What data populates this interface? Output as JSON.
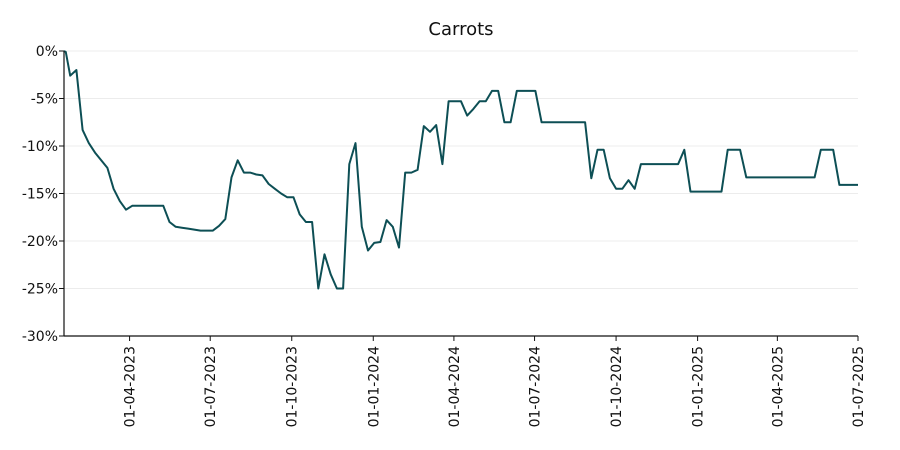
{
  "chart_data": {
    "type": "line",
    "title": "Carrots",
    "xlabel": "",
    "ylabel": "",
    "ylim": [
      -30,
      0
    ],
    "xlim": [
      "2023-01-17",
      "2025-07-01"
    ],
    "y_ticks": [
      0,
      -5,
      -10,
      -15,
      -20,
      -25,
      -30
    ],
    "y_tick_labels": [
      "0%",
      "-5%",
      "-10%",
      "-15%",
      "-20%",
      "-25%",
      "-30%"
    ],
    "x_ticks": [
      "2023-04-01",
      "2023-07-01",
      "2023-10-01",
      "2024-01-01",
      "2024-04-01",
      "2024-07-01",
      "2024-10-01",
      "2025-01-01",
      "2025-04-01",
      "2025-07-01"
    ],
    "x_tick_labels": [
      "01-04-2023",
      "01-07-2023",
      "01-10-2023",
      "01-01-2024",
      "01-04-2024",
      "01-07-2024",
      "01-10-2024",
      "01-01-2025",
      "01-04-2025",
      "01-07-2025"
    ],
    "grid": true,
    "series_color": "#0d4f55",
    "series": [
      {
        "x": [
          "2023-01-17",
          "2023-01-19",
          "2023-01-24",
          "2023-01-31",
          "2023-02-07",
          "2023-02-14",
          "2023-02-21",
          "2023-02-28",
          "2023-03-07",
          "2023-03-14",
          "2023-03-21",
          "2023-03-28",
          "2023-04-04",
          "2023-04-11",
          "2023-04-18",
          "2023-04-25",
          "2023-05-02",
          "2023-05-09",
          "2023-05-16",
          "2023-05-23",
          "2023-05-30",
          "2023-06-06",
          "2023-06-13",
          "2023-06-20",
          "2023-06-27",
          "2023-07-04",
          "2023-07-11",
          "2023-07-18",
          "2023-07-25",
          "2023-08-01",
          "2023-08-08",
          "2023-08-15",
          "2023-08-22",
          "2023-08-29",
          "2023-09-05",
          "2023-09-12",
          "2023-09-19",
          "2023-09-26",
          "2023-10-03",
          "2023-10-10",
          "2023-10-17",
          "2023-10-24",
          "2023-10-31",
          "2023-11-07",
          "2023-11-14",
          "2023-11-21",
          "2023-11-28",
          "2023-12-05",
          "2023-12-12",
          "2023-12-19",
          "2023-12-26",
          "2024-01-02",
          "2024-01-09",
          "2024-01-16",
          "2024-01-23",
          "2024-01-30",
          "2024-02-06",
          "2024-02-13",
          "2024-02-20",
          "2024-02-27",
          "2024-03-05",
          "2024-03-12",
          "2024-03-19",
          "2024-03-26",
          "2024-04-02",
          "2024-04-09",
          "2024-04-16",
          "2024-04-23",
          "2024-04-30",
          "2024-05-07",
          "2024-05-14",
          "2024-05-21",
          "2024-05-28",
          "2024-06-04",
          "2024-06-11",
          "2024-06-18",
          "2024-06-25",
          "2024-07-02",
          "2024-07-09",
          "2024-07-16",
          "2024-07-23",
          "2024-07-30",
          "2024-08-06",
          "2024-08-13",
          "2024-08-20",
          "2024-08-27",
          "2024-09-03",
          "2024-09-10",
          "2024-09-17",
          "2024-09-24",
          "2024-10-01",
          "2024-10-08",
          "2024-10-15",
          "2024-10-22",
          "2024-10-29",
          "2024-11-05",
          "2024-11-12",
          "2024-11-19",
          "2024-11-26",
          "2024-12-03",
          "2024-12-10",
          "2024-12-17",
          "2024-12-24",
          "2024-12-31",
          "2025-01-07",
          "2025-01-14",
          "2025-01-21",
          "2025-01-28",
          "2025-02-04",
          "2025-02-11",
          "2025-02-18",
          "2025-02-25",
          "2025-03-04",
          "2025-03-11",
          "2025-03-18",
          "2025-03-25",
          "2025-04-01",
          "2025-04-08",
          "2025-04-15",
          "2025-04-22",
          "2025-04-29",
          "2025-05-06",
          "2025-05-13",
          "2025-05-20",
          "2025-05-27",
          "2025-06-03",
          "2025-06-10",
          "2025-06-17",
          "2025-06-24",
          "2025-07-01"
        ],
        "values": [
          0,
          -0.1,
          -2.6,
          -2.0,
          -8.3,
          -9.7,
          -10.7,
          -11.5,
          -12.3,
          -14.5,
          -15.8,
          -16.7,
          -16.3,
          -16.3,
          -16.3,
          -16.3,
          -16.3,
          -16.3,
          -18.0,
          -18.5,
          -18.6,
          -18.7,
          -18.8,
          -18.9,
          -18.9,
          -18.9,
          -18.4,
          -17.7,
          -13.3,
          -11.5,
          -12.8,
          -12.8,
          -13.0,
          -13.1,
          -14.0,
          -14.5,
          -15.0,
          -15.4,
          -15.4,
          -17.2,
          -18.0,
          -18.0,
          -25.0,
          -21.4,
          -23.5,
          -25.0,
          -25.0,
          -11.9,
          -9.7,
          -18.5,
          -21.0,
          -20.2,
          -20.1,
          -17.8,
          -18.5,
          -20.7,
          -12.8,
          -12.8,
          -12.5,
          -7.9,
          -8.5,
          -7.8,
          -11.9,
          -5.3,
          -5.3,
          -5.3,
          -6.8,
          -6.1,
          -5.3,
          -5.3,
          -4.2,
          -4.2,
          -7.5,
          -7.5,
          -4.2,
          -4.2,
          -4.2,
          -4.2,
          -7.5,
          -7.5,
          -7.5,
          -7.5,
          -7.5,
          -7.5,
          -7.5,
          -7.5,
          -13.4,
          -10.4,
          -10.4,
          -13.4,
          -14.5,
          -14.5,
          -13.6,
          -14.5,
          -11.9,
          -11.9,
          -11.9,
          -11.9,
          -11.9,
          -11.9,
          -11.9,
          -10.4,
          -14.8,
          -14.8,
          -14.8,
          -14.8,
          -14.8,
          -14.8,
          -10.4,
          -10.4,
          -10.4,
          -13.3,
          -13.3,
          -13.3,
          -13.3,
          -13.3,
          -13.3,
          -13.3,
          -13.3,
          -13.3,
          -13.3,
          -13.3,
          -13.3,
          -10.4,
          -10.4,
          -10.4,
          -14.1,
          -14.1,
          -14.1,
          -14.1
        ]
      }
    ]
  }
}
